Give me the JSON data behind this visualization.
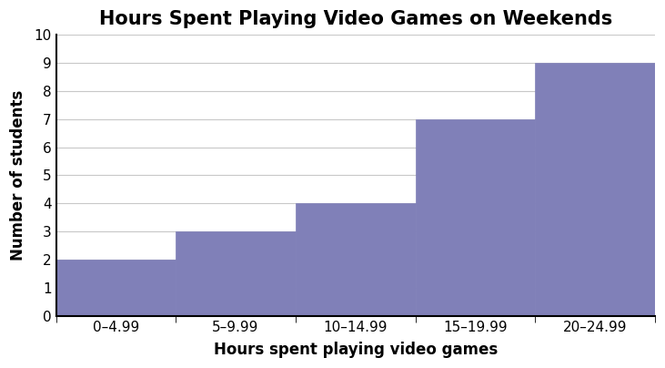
{
  "title": "Hours Spent Playing Video Games on Weekends",
  "xlabel": "Hours spent playing video games",
  "ylabel": "Number of students",
  "bar_labels": [
    "0–4.99",
    "5–9.99",
    "10–14.99",
    "15–19.99",
    "20–24.99"
  ],
  "bar_heights": [
    2,
    3,
    4,
    7,
    9
  ],
  "bar_color": "#8080b8",
  "bar_edgecolor": "#8080b8",
  "ylim": [
    0,
    10
  ],
  "yticks": [
    0,
    1,
    2,
    3,
    4,
    5,
    6,
    7,
    8,
    9,
    10
  ],
  "title_fontsize": 15,
  "label_fontsize": 12,
  "tick_fontsize": 11,
  "title_fontweight": "bold",
  "label_fontweight": "bold",
  "grid_color": "#c8c8c8",
  "background_color": "#ffffff",
  "spine_color": "#000000",
  "figsize": [
    7.31,
    4.04
  ],
  "dpi": 100
}
